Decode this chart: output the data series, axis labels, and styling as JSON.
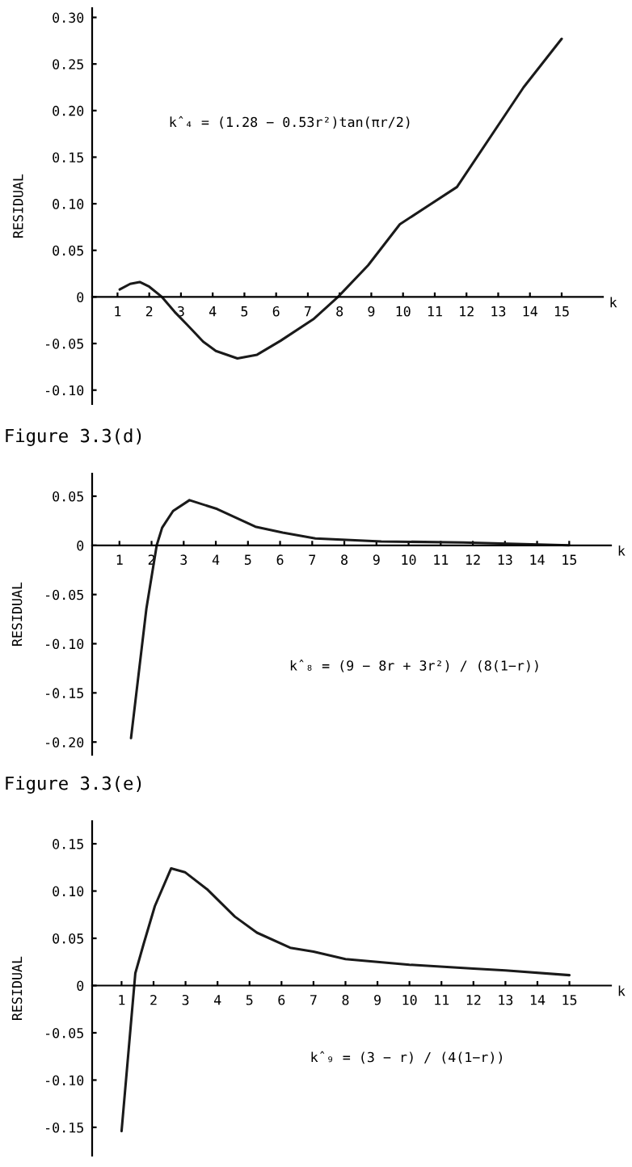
{
  "chart_data": [
    {
      "type": "line",
      "xlabel": "k",
      "ylabel": "RESIDUAL",
      "annotations": [
        "k̂₄ = (1.28 − 0.53r²)tan(πr/2)"
      ],
      "xlim": [
        0.2,
        16.3
      ],
      "ylim": [
        -0.115,
        0.31
      ],
      "xticks": [
        1,
        2,
        3,
        4,
        5,
        6,
        7,
        8,
        9,
        10,
        11,
        12,
        13,
        14,
        15
      ],
      "yticks": [
        {
          "value": 0.3,
          "label": "0.30"
        },
        0.25,
        {
          "value": 0.2,
          "label": "0.20"
        },
        0.15,
        {
          "value": 0.1,
          "label": "0.10"
        },
        0.05,
        0,
        -0.05,
        {
          "value": -0.1,
          "label": "-0.10"
        }
      ],
      "grid": false,
      "marker": "none",
      "line_style": "solid",
      "series": [
        {
          "color": "#1a1a1a",
          "x": [
            1.07,
            1.4,
            1.7,
            2.0,
            2.4,
            2.8,
            3.2,
            3.7,
            4.1,
            4.78,
            5.4,
            6.14,
            7.17,
            7.95,
            8.9,
            9.9,
            11.7,
            13.8,
            15
          ],
          "values": [
            0.008,
            0.014,
            0.016,
            0.011,
            0,
            -0.016,
            -0.03,
            -0.048,
            -0.058,
            -0.066,
            -0.062,
            -0.047,
            -0.024,
            0,
            0.034,
            0.078,
            0.118,
            0.225,
            0.277
          ]
        }
      ]
    },
    {
      "type": "line",
      "title": "Figure 3.3(d)",
      "xlabel": "k",
      "ylabel": "RESIDUAL",
      "annotations": [
        "k̂₈ = (9 − 8r + 3r²) / (8(1−r))"
      ],
      "xlim": [
        0.15,
        16.3
      ],
      "ylim": [
        -0.213,
        0.073
      ],
      "xticks": [
        1,
        2,
        3,
        4,
        5,
        6,
        7,
        8,
        9,
        10,
        11,
        12,
        13,
        14,
        15
      ],
      "yticks": [
        0.05,
        0,
        -0.05,
        {
          "value": -0.1,
          "label": "-0.10"
        },
        -0.15,
        {
          "value": -0.2,
          "label": "-0.20"
        }
      ],
      "grid": false,
      "marker": "none",
      "line_style": "solid",
      "series": [
        {
          "color": "#1a1a1a",
          "x": [
            1.36,
            1.84,
            2.16,
            2.33,
            2.67,
            3.18,
            4.04,
            5.23,
            6.08,
            7.1,
            9.15,
            11.7,
            15
          ],
          "values": [
            -0.196,
            -0.064,
            0,
            0.018,
            0.035,
            0.046,
            0.037,
            0.019,
            0.013,
            0.007,
            0.004,
            0.003,
            0
          ]
        }
      ]
    },
    {
      "type": "line",
      "title": "Figure 3.3(e)",
      "xlabel": "k",
      "ylabel": "RESIDUAL",
      "annotations": [
        "k̂₉ = (3 − r) / (4(1−r))"
      ],
      "xlim": [
        0.08,
        16.3
      ],
      "ylim": [
        -0.18,
        0.174
      ],
      "xticks": [
        1,
        2,
        3,
        4,
        5,
        6,
        7,
        8,
        9,
        10,
        11,
        12,
        13,
        14,
        15
      ],
      "yticks": [
        0.15,
        {
          "value": 0.1,
          "label": "0.10"
        },
        0.05,
        0,
        -0.05,
        {
          "value": -0.1,
          "label": "-0.10"
        },
        -0.15
      ],
      "grid": false,
      "marker": "none",
      "line_style": "solid",
      "series": [
        {
          "color": "#1a1a1a",
          "x": [
            1,
            1.43,
            1.69,
            2.04,
            2.55,
            2.98,
            3.67,
            4.54,
            5.23,
            6.27,
            7.0,
            8.0,
            10.0,
            12.0,
            13.0,
            15
          ],
          "values": [
            -0.154,
            0.013,
            0.044,
            0.084,
            0.124,
            0.12,
            0.102,
            0.073,
            0.056,
            0.04,
            0.036,
            0.028,
            0.022,
            0.018,
            0.016,
            0.011
          ]
        }
      ]
    }
  ]
}
